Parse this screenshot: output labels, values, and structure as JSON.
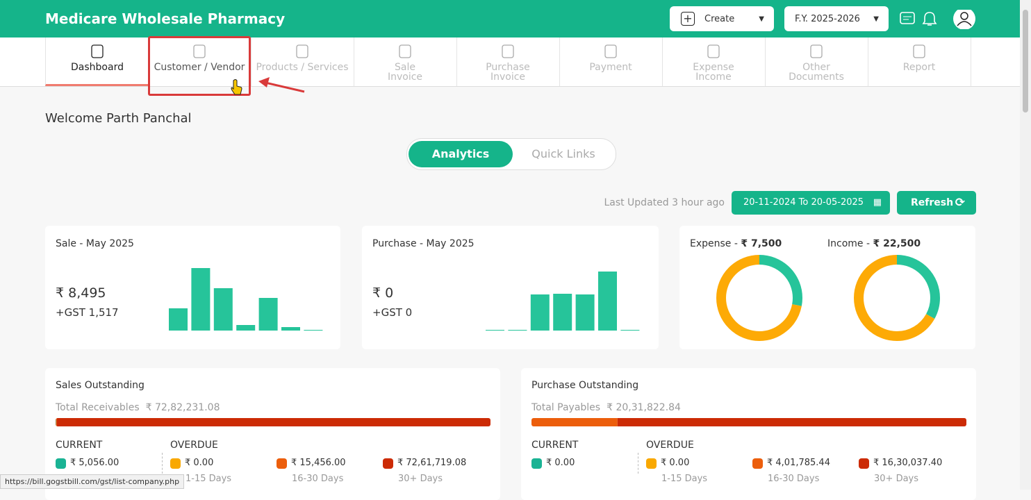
{
  "header": {
    "brand": "Medicare Wholesale Pharmacy",
    "create": "Create",
    "fy": "F.Y. 2025-2026"
  },
  "nav": {
    "tabs": [
      "Dashboard",
      "Customer / Vendor",
      "Products / Services",
      "Sale\nInvoice",
      "Purchase\nInvoice",
      "Payment",
      "Expense\nIncome",
      "Other\nDocuments",
      "Report"
    ]
  },
  "welcome": "Welcome Parth Panchal",
  "toggle": [
    "Analytics",
    "Quick Links"
  ],
  "last_updated": "Last Updated 3 hour ago",
  "date_range": "20-11-2024 To 20-05-2025",
  "refresh": "Refresh",
  "sale_card": {
    "title": "Sale - May 2025",
    "amount": "₹ 8,495",
    "gst": "+GST 1,517",
    "bars": [
      32,
      90,
      61,
      8,
      47,
      5,
      1
    ]
  },
  "purchase_card": {
    "title": "Purchase - May 2025",
    "amount": "₹ 0",
    "gst": "+GST 0",
    "bars": [
      1,
      1,
      52,
      53,
      52,
      85,
      1
    ]
  },
  "expense": {
    "label": "Expense -",
    "amount": "₹ 7,500",
    "donut": [
      28,
      72
    ]
  },
  "income": {
    "label": "Income -",
    "amount": "₹ 22,500",
    "donut": [
      33,
      67
    ]
  },
  "bucket_colors": [
    "#1ab394",
    "#f9a800",
    "#ec5e0c",
    "#cc2b05"
  ],
  "sales_outstanding": {
    "title": "Sales Outstanding",
    "total_label": "Total Receivables",
    "total": "₹ 72,82,231.08",
    "current_label": "CURRENT",
    "overdue_label": "OVERDUE",
    "buckets": [
      {
        "value": 5056,
        "label": "₹ 5,056.00"
      },
      {
        "value": 0,
        "label": "₹ 0.00",
        "days": "1-15 Days"
      },
      {
        "value": 15456,
        "label": "₹ 15,456.00",
        "days": "16-30 Days"
      },
      {
        "value": 7261719.08,
        "label": "₹ 72,61,719.08",
        "days": "30+ Days"
      }
    ]
  },
  "purchase_outstanding": {
    "title": "Purchase Outstanding",
    "total_label": "Total Payables",
    "total": "₹ 20,31,822.84",
    "current_label": "CURRENT",
    "overdue_label": "OVERDUE",
    "buckets": [
      {
        "value": 0,
        "label": "₹ 0.00"
      },
      {
        "value": 0,
        "label": "₹ 0.00",
        "days": "1-15 Days"
      },
      {
        "value": 401785.44,
        "label": "₹ 4,01,785.44",
        "days": "16-30 Days"
      },
      {
        "value": 1630037.4,
        "label": "₹ 16,30,037.40",
        "days": "30+ Days"
      }
    ]
  },
  "status_url": "https://bill.gogstbill.com/gst/list-company.php"
}
